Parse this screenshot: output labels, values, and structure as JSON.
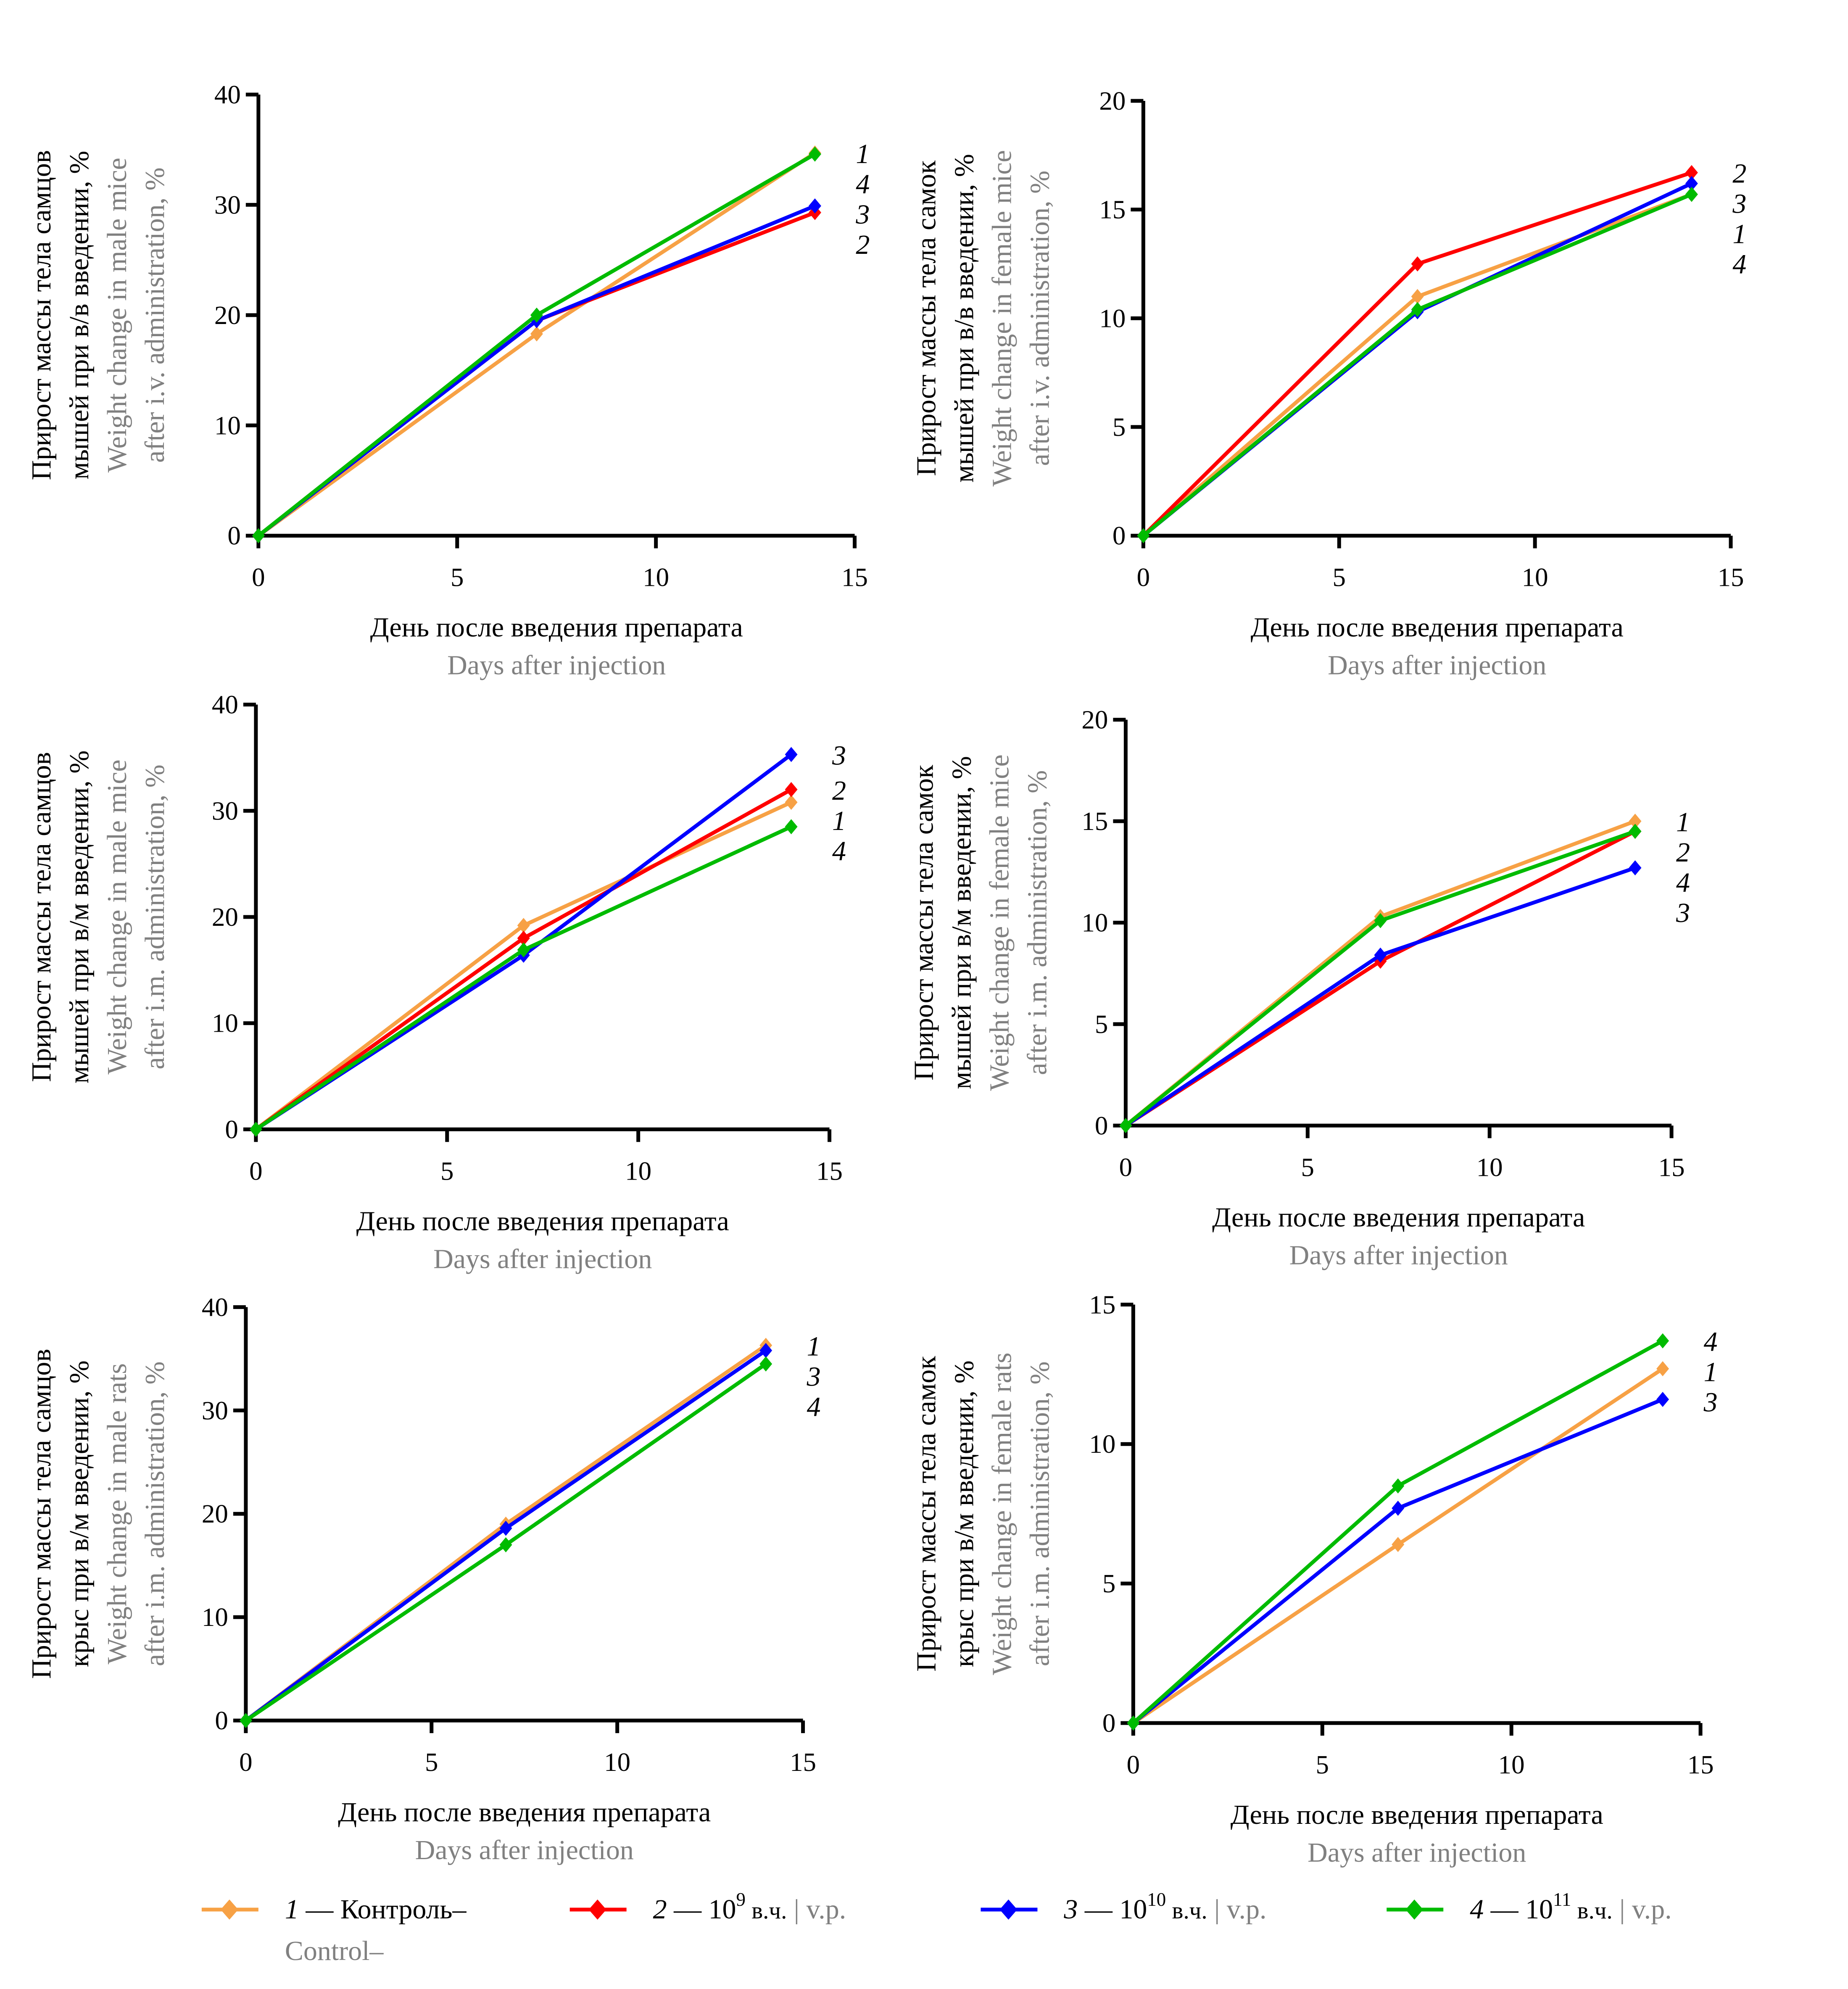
{
  "colors": {
    "1": "#F7A145",
    "2": "#FF0000",
    "3": "#0000FF",
    "4": "#00BB00"
  },
  "legend": [
    {
      "key": "1",
      "num": "1",
      "text": " — Контроль–",
      "en": "Control–",
      "color": "#F7A145",
      "marker": "diamond"
    },
    {
      "key": "2",
      "num": "2",
      "text": " — 10",
      "sup": "9",
      "unit": " в.ч.",
      "sep": " | ",
      "en": "v.p.",
      "color": "#FF0000",
      "marker": "diamond"
    },
    {
      "key": "3",
      "num": "3",
      "text": " — 10",
      "sup": "10",
      "unit": " в.ч.",
      "sep": " | ",
      "en": "v.p.",
      "color": "#0000FF",
      "marker": "diamond"
    },
    {
      "key": "4",
      "num": "4",
      "text": " — 10",
      "sup": "11",
      "unit": " в.ч.",
      "sep": " | ",
      "en": "v.p.",
      "color": "#00BB00",
      "marker": "diamond"
    }
  ],
  "chart_data": [
    {
      "type": "line",
      "ylabel_ru": [
        "Прирост массы тела самцов",
        "мышей при в/в введении, %"
      ],
      "ylabel_en": [
        "Weight change in male mice",
        "after i.v. administration, %"
      ],
      "xlabel_ru": "День после введения препарата",
      "xlabel_en": "Days after injection",
      "x": [
        0,
        7,
        14
      ],
      "xlim": [
        0,
        15
      ],
      "xticks": [
        0,
        5,
        10,
        15
      ],
      "ylim": [
        0,
        40
      ],
      "yticks": [
        0,
        10,
        20,
        30,
        40
      ],
      "grid": false,
      "series": [
        {
          "name": "1",
          "values": [
            0,
            18.3,
            34.7
          ]
        },
        {
          "name": "2",
          "values": [
            0,
            19.5,
            29.3
          ]
        },
        {
          "name": "3",
          "values": [
            0,
            19.5,
            29.9
          ]
        },
        {
          "name": "4",
          "values": [
            0,
            20.0,
            34.6
          ]
        }
      ]
    },
    {
      "type": "line",
      "ylabel_ru": [
        "Прирост массы тела самок",
        "мышей при в/в введении, %"
      ],
      "ylabel_en": [
        "Weight change in female mice",
        "after i.v. administration, %"
      ],
      "xlabel_ru": "День после введения препарата",
      "xlabel_en": "Days after injection",
      "x": [
        0,
        7,
        14
      ],
      "xlim": [
        0,
        15
      ],
      "xticks": [
        0,
        5,
        10,
        15
      ],
      "ylim": [
        0,
        20
      ],
      "yticks": [
        0,
        5,
        10,
        15,
        20
      ],
      "grid": false,
      "series": [
        {
          "name": "1",
          "values": [
            0,
            11.0,
            15.7
          ]
        },
        {
          "name": "2",
          "values": [
            0,
            12.5,
            16.7
          ]
        },
        {
          "name": "3",
          "values": [
            0,
            10.3,
            16.2
          ]
        },
        {
          "name": "4",
          "values": [
            0,
            10.4,
            15.7
          ]
        }
      ]
    },
    {
      "type": "line",
      "ylabel_ru": [
        "Прирост массы тела самцов",
        "мышей при в/м введении, %"
      ],
      "ylabel_en": [
        "Weight change in male mice",
        "after i.m. administration, %"
      ],
      "xlabel_ru": "День после введения препарата",
      "xlabel_en": "Days after injection",
      "x": [
        0,
        7,
        14
      ],
      "xlim": [
        0,
        15
      ],
      "xticks": [
        0,
        5,
        10,
        15
      ],
      "ylim": [
        0,
        40
      ],
      "yticks": [
        0,
        10,
        20,
        30,
        40
      ],
      "grid": false,
      "series": [
        {
          "name": "1",
          "values": [
            0,
            19.2,
            30.8
          ]
        },
        {
          "name": "2",
          "values": [
            0,
            18.0,
            32.0
          ]
        },
        {
          "name": "3",
          "values": [
            0,
            16.4,
            35.3
          ]
        },
        {
          "name": "4",
          "values": [
            0,
            16.9,
            28.5
          ]
        }
      ]
    },
    {
      "type": "line",
      "ylabel_ru": [
        "Прирост массы тела самок",
        "мышей при в/м введении, %"
      ],
      "ylabel_en": [
        "Weight change in female mice",
        "after i.m. administration, %"
      ],
      "xlabel_ru": "День после введения препарата",
      "xlabel_en": "Days after injection",
      "x": [
        0,
        7,
        14
      ],
      "xlim": [
        0,
        15
      ],
      "xticks": [
        0,
        5,
        10,
        15
      ],
      "ylim": [
        0,
        20
      ],
      "yticks": [
        0,
        5,
        10,
        15,
        20
      ],
      "grid": false,
      "series": [
        {
          "name": "1",
          "values": [
            0,
            10.3,
            15.0
          ]
        },
        {
          "name": "2",
          "values": [
            0,
            8.1,
            14.5
          ]
        },
        {
          "name": "3",
          "values": [
            0,
            8.4,
            12.7
          ]
        },
        {
          "name": "4",
          "values": [
            0,
            10.1,
            14.5
          ]
        }
      ]
    },
    {
      "type": "line",
      "ylabel_ru": [
        "Прирост массы тела самцов",
        "крыс при в/м введении, %"
      ],
      "ylabel_en": [
        "Weight change in male rats",
        "after i.m. administration, %"
      ],
      "xlabel_ru": "День после введения препарата",
      "xlabel_en": "Days after injection",
      "x": [
        0,
        7,
        14
      ],
      "xlim": [
        0,
        15
      ],
      "xticks": [
        0,
        5,
        10,
        15
      ],
      "ylim": [
        0,
        40
      ],
      "yticks": [
        0,
        10,
        20,
        30,
        40
      ],
      "grid": false,
      "series": [
        {
          "name": "1",
          "values": [
            0,
            19.0,
            36.3
          ]
        },
        {
          "name": "3",
          "values": [
            0,
            18.6,
            35.8
          ]
        },
        {
          "name": "4",
          "values": [
            0,
            17.0,
            34.5
          ]
        }
      ]
    },
    {
      "type": "line",
      "ylabel_ru": [
        "Прирост массы тела самок",
        "крыс при в/м введении, %"
      ],
      "ylabel_en": [
        "Weight change in female rats",
        "after i.m. administration, %"
      ],
      "xlabel_ru": "День после введения препарата",
      "xlabel_en": "Days after injection",
      "x": [
        0,
        7,
        14
      ],
      "xlim": [
        0,
        15
      ],
      "xticks": [
        0,
        5,
        10,
        15
      ],
      "ylim": [
        0,
        15
      ],
      "yticks": [
        0,
        5,
        10,
        15
      ],
      "grid": false,
      "series": [
        {
          "name": "1",
          "values": [
            0,
            6.4,
            12.7
          ]
        },
        {
          "name": "3",
          "values": [
            0,
            7.7,
            11.6
          ]
        },
        {
          "name": "4",
          "values": [
            0,
            8.5,
            13.7
          ]
        }
      ]
    }
  ]
}
